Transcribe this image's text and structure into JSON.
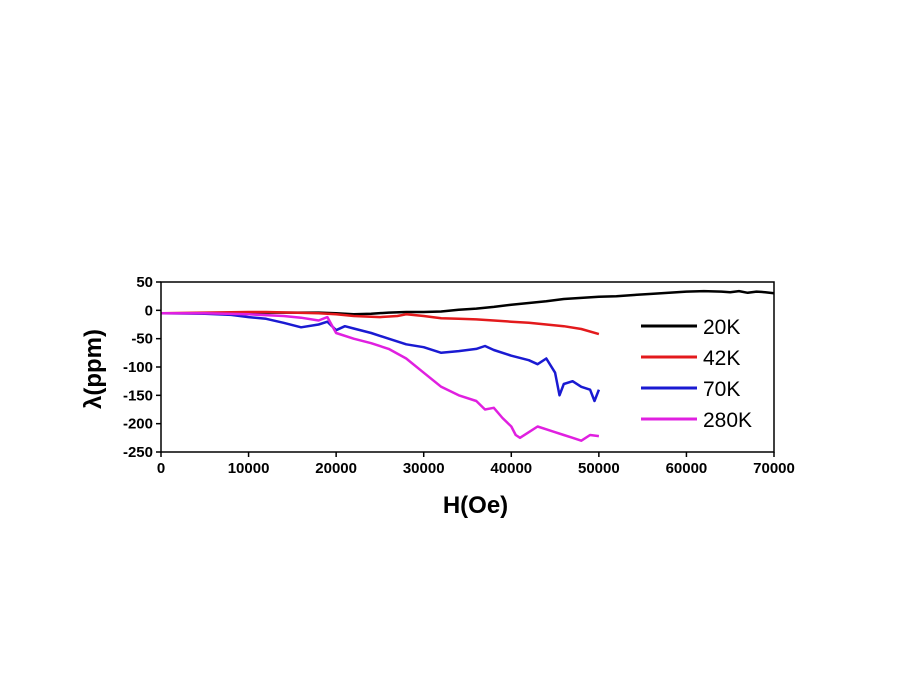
{
  "chart_data": {
    "type": "line",
    "xlabel": "H(Oe)",
    "ylabel": "λ(ppm)",
    "xlim": [
      0,
      70000
    ],
    "ylim": [
      -250,
      50
    ],
    "xticks": [
      0,
      10000,
      20000,
      30000,
      40000,
      50000,
      60000,
      70000
    ],
    "yticks": [
      50,
      0,
      -50,
      -100,
      -150,
      -200,
      -250
    ],
    "grid": false,
    "legend_position": "right",
    "series": [
      {
        "name": "20K",
        "color": "#000000",
        "x": [
          0,
          5000,
          10000,
          15000,
          18000,
          20000,
          22000,
          24000,
          26000,
          28000,
          30000,
          32000,
          34000,
          36000,
          38000,
          40000,
          42000,
          44000,
          46000,
          48000,
          50000,
          52000,
          54000,
          56000,
          58000,
          60000,
          62000,
          64000,
          65000,
          66000,
          67000,
          68000,
          69000,
          70000
        ],
        "y": [
          -5,
          -5,
          -4,
          -4,
          -4,
          -5,
          -7,
          -6,
          -4,
          -3,
          -3,
          -2,
          1,
          3,
          6,
          10,
          13,
          16,
          20,
          22,
          24,
          25,
          27,
          29,
          31,
          33,
          34,
          33,
          32,
          34,
          31,
          33,
          32,
          30
        ]
      },
      {
        "name": "42K",
        "color": "#e31a1c",
        "x": [
          0,
          5000,
          10000,
          12000,
          15000,
          18000,
          20000,
          22000,
          25000,
          27000,
          28000,
          30000,
          32000,
          34000,
          36000,
          38000,
          40000,
          42000,
          44000,
          46000,
          48000,
          50000
        ],
        "y": [
          -5,
          -4,
          -3,
          -3,
          -4,
          -5,
          -7,
          -10,
          -12,
          -10,
          -7,
          -10,
          -14,
          -15,
          -16,
          -18,
          -20,
          -22,
          -25,
          -28,
          -33,
          -42
        ]
      },
      {
        "name": "70K",
        "color": "#1a1ad2",
        "x": [
          0,
          5000,
          8000,
          10000,
          12000,
          14000,
          16000,
          18000,
          19000,
          20000,
          21000,
          22000,
          24000,
          26000,
          28000,
          30000,
          32000,
          34000,
          36000,
          37000,
          38000,
          40000,
          42000,
          43000,
          44000,
          45000,
          45500,
          46000,
          47000,
          48000,
          49000,
          49500,
          50000
        ],
        "y": [
          -5,
          -6,
          -8,
          -12,
          -15,
          -22,
          -30,
          -25,
          -20,
          -35,
          -28,
          -32,
          -40,
          -50,
          -60,
          -65,
          -75,
          -72,
          -68,
          -63,
          -70,
          -80,
          -88,
          -95,
          -85,
          -110,
          -150,
          -130,
          -125,
          -135,
          -140,
          -160,
          -140
        ]
      },
      {
        "name": "280K",
        "color": "#e020e0",
        "x": [
          0,
          5000,
          10000,
          14000,
          16000,
          18000,
          19000,
          20000,
          22000,
          24000,
          26000,
          28000,
          30000,
          32000,
          34000,
          36000,
          37000,
          38000,
          39000,
          40000,
          40500,
          41000,
          42000,
          43000,
          44000,
          45000,
          46000,
          47000,
          48000,
          49000,
          50000
        ],
        "y": [
          -5,
          -5,
          -7,
          -10,
          -13,
          -18,
          -12,
          -40,
          -50,
          -58,
          -68,
          -85,
          -110,
          -135,
          -150,
          -160,
          -175,
          -172,
          -190,
          -205,
          -220,
          -225,
          -215,
          -205,
          -210,
          -215,
          -220,
          -225,
          -230,
          -220,
          -222
        ]
      }
    ]
  }
}
